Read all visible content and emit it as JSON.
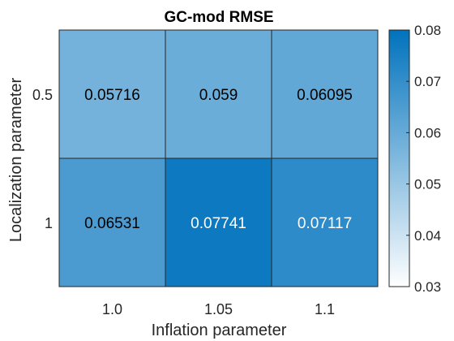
{
  "chart_data": {
    "type": "heatmap",
    "title": "GC-mod RMSE",
    "xlabel": "Inflation parameter",
    "ylabel": "Localization parameter",
    "x_categories": [
      "1.0",
      "1.05",
      "1.1"
    ],
    "y_categories": [
      "0.5",
      "1"
    ],
    "values": [
      [
        0.05716,
        0.059,
        0.06095
      ],
      [
        0.06531,
        0.07741,
        0.07117
      ]
    ],
    "cell_labels": [
      [
        "0.05716",
        "0.059",
        "0.06095"
      ],
      [
        "0.06531",
        "0.07741",
        "0.07117"
      ]
    ],
    "colorbar": {
      "limits": [
        0.03,
        0.08
      ],
      "ticks": [
        "0.03",
        "0.04",
        "0.05",
        "0.06",
        "0.07",
        "0.08"
      ],
      "color_low": "#ffffff",
      "color_high": "#0072bd"
    },
    "label_color_dark": "#000000",
    "label_color_light": "#ffffff",
    "grid_color": "#262626",
    "legend": "colorbar-right"
  }
}
